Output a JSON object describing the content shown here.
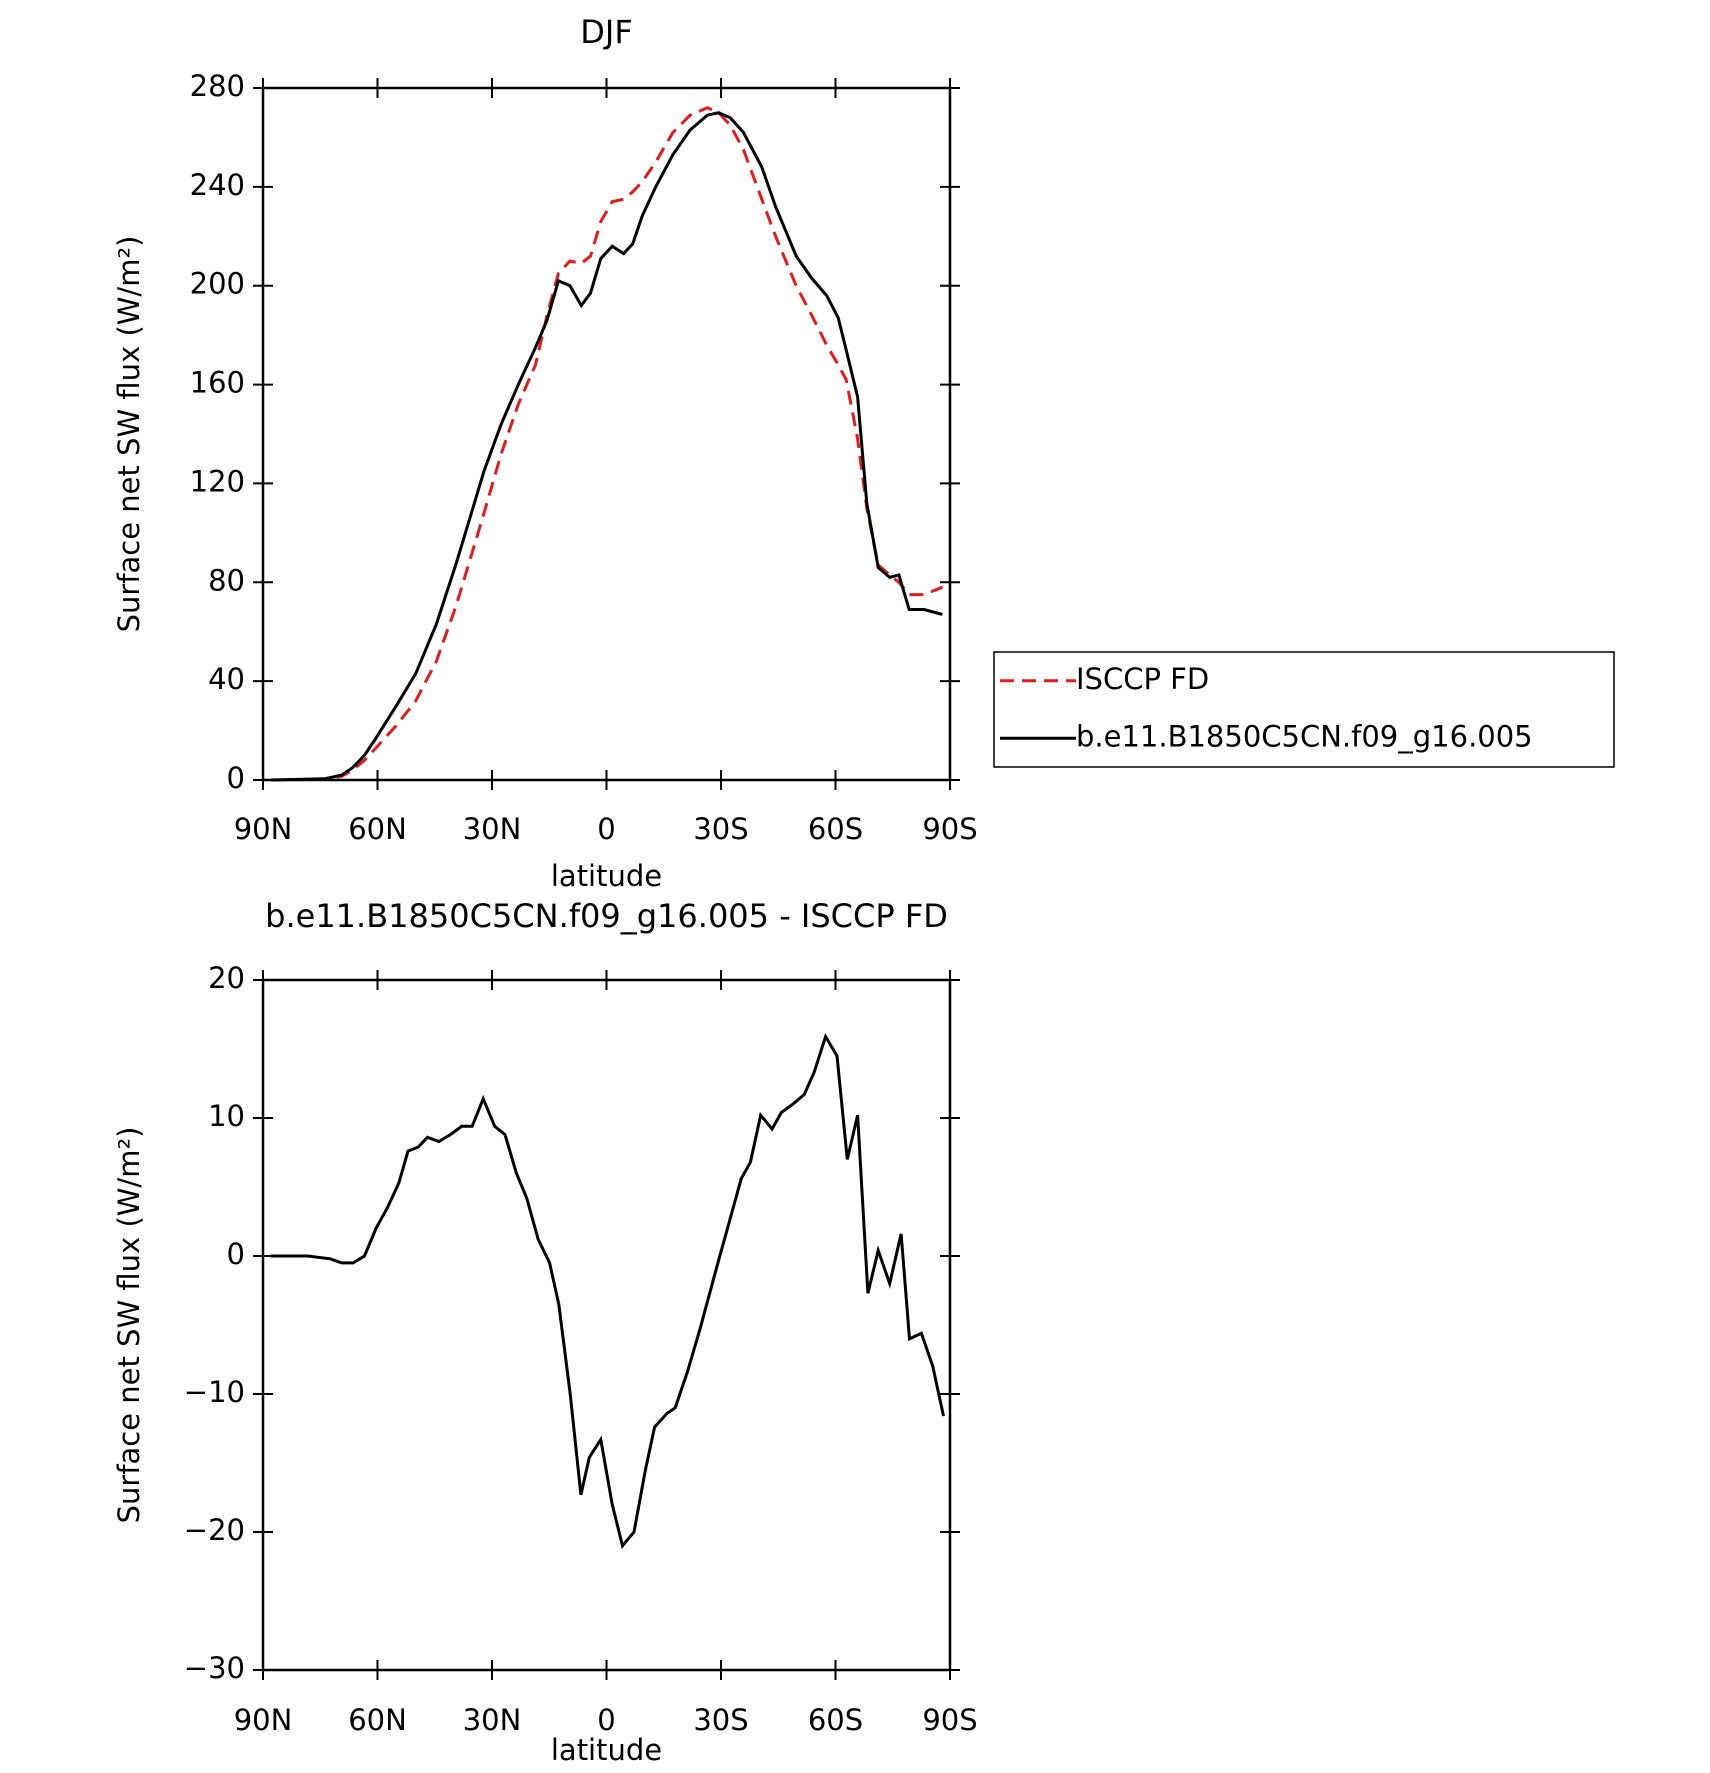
{
  "chart_data": [
    {
      "type": "line",
      "title": "DJF",
      "xlabel": "latitude",
      "ylabel": "Surface net SW flux (W/m²)",
      "xlim": [
        90,
        -90
      ],
      "ylim": [
        0,
        280
      ],
      "xticks": [
        {
          "value": 90,
          "label": "90N"
        },
        {
          "value": 60,
          "label": "60N"
        },
        {
          "value": 30,
          "label": "30N"
        },
        0,
        {
          "value": -30,
          "label": "30S"
        },
        {
          "value": -60,
          "label": "60S"
        },
        {
          "value": -90,
          "label": "90S"
        }
      ],
      "yticks": [
        0,
        40,
        80,
        120,
        160,
        200,
        240,
        280
      ],
      "legend": "right",
      "series": [
        {
          "name": "ISCCP FD",
          "color": "#e41a1c",
          "linestyle": "dashed",
          "x": [
            87.9,
            73.9,
            69.4,
            66.5,
            63.4,
            60.4,
            55.1,
            50.0,
            44.6,
            39.5,
            35.0,
            32.1,
            27.6,
            23.1,
            18.6,
            15.6,
            12.6,
            9.6,
            6.6,
            4.2,
            1.5,
            -1.5,
            -4.5,
            -6.9,
            -9.3,
            -12.9,
            -17.4,
            -21.9,
            -26.4,
            -29.4,
            -32.4,
            -35.9,
            -40.7,
            -44.3,
            -49.7,
            -53.8,
            -57.7,
            -60.7,
            -62.8,
            -65.8,
            -68.2,
            -71.2,
            -74.2,
            -76.6,
            -79.3,
            -83.2,
            -88.0
          ],
          "values": [
            0,
            0.3,
            1.5,
            4,
            8,
            13,
            22,
            32,
            48,
            70,
            93,
            108,
            132,
            152,
            168,
            188,
            205,
            210,
            209,
            212,
            226,
            234,
            235,
            238,
            242,
            250,
            262,
            269,
            272,
            270,
            265,
            255,
            235,
            220,
            200,
            188,
            176,
            168,
            162,
            138,
            110,
            87,
            83,
            80,
            75,
            75,
            78
          ]
        },
        {
          "name": "b.e11.B1850C5CN.f09_g16.005",
          "color": "#000000",
          "linestyle": "solid",
          "x": [
            87.9,
            73.9,
            69.4,
            66.5,
            63.4,
            60.4,
            55.1,
            50.0,
            44.6,
            39.5,
            35.0,
            32.1,
            27.6,
            23.1,
            18.6,
            15.6,
            12.6,
            9.6,
            6.6,
            4.2,
            1.5,
            -1.5,
            -4.5,
            -6.9,
            -9.3,
            -12.9,
            -17.4,
            -21.9,
            -26.4,
            -29.4,
            -32.4,
            -35.9,
            -40.7,
            -44.3,
            -49.7,
            -53.8,
            -57.7,
            -60.7,
            -62.8,
            -65.8,
            -68.2,
            -71.2,
            -74.2,
            -76.6,
            -79.3,
            -83.2,
            -88.0
          ],
          "values": [
            0,
            0.5,
            2,
            5,
            10,
            17,
            30,
            43,
            63,
            87,
            110,
            125,
            144,
            160,
            175,
            186,
            202,
            200,
            192,
            197,
            211,
            216,
            213,
            217,
            228,
            240,
            253,
            263,
            269,
            270,
            268,
            262,
            248,
            232,
            212,
            203,
            196,
            187,
            174,
            155,
            112,
            86,
            82,
            83,
            69,
            69,
            67
          ]
        }
      ]
    },
    {
      "type": "line",
      "title": "b.e11.B1850C5CN.f09_g16.005 - ISCCP FD",
      "xlabel": "latitude",
      "ylabel": "Surface net SW flux (W/m²)",
      "xlim": [
        90,
        -90
      ],
      "ylim": [
        -30,
        20
      ],
      "xticks": [
        {
          "value": 90,
          "label": "90N"
        },
        {
          "value": 60,
          "label": "60N"
        },
        {
          "value": 30,
          "label": "30N"
        },
        0,
        {
          "value": -30,
          "label": "30S"
        },
        {
          "value": -60,
          "label": "60S"
        },
        {
          "value": -90,
          "label": "90S"
        }
      ],
      "yticks": [
        {
          "value": -30,
          "label": "−30"
        },
        {
          "value": -20,
          "label": "−20"
        },
        {
          "value": -10,
          "label": "−10"
        },
        0,
        10,
        20
      ],
      "series": [
        {
          "color": "#000000",
          "linestyle": "solid",
          "x": [
            87.9,
            78.3,
            72.4,
            69.4,
            66.4,
            63.4,
            60.4,
            57.4,
            54.4,
            52.0,
            49.3,
            46.9,
            43.9,
            40.9,
            37.9,
            35.2,
            32.3,
            29.3,
            26.6,
            23.6,
            20.9,
            17.9,
            14.9,
            12.5,
            9.5,
            6.7,
            4.5,
            1.5,
            -1.5,
            -4.2,
            -7.2,
            -10.2,
            -12.6,
            -15.9,
            -18.0,
            -21.2,
            -24.5,
            -28.7,
            -31.7,
            -35.3,
            -37.7,
            -40.4,
            -43.4,
            -45.8,
            -48.8,
            -51.8,
            -54.4,
            -57.4,
            -60.4,
            -63.1,
            -65.8,
            -68.5,
            -71.2,
            -74.2,
            -77.2,
            -79.4,
            -82.5,
            -85.5,
            -88.3
          ],
          "values": [
            0,
            0,
            -0.2,
            -0.5,
            -0.5,
            0,
            2,
            3.5,
            5.3,
            7.6,
            7.9,
            8.6,
            8.3,
            8.8,
            9.4,
            9.4,
            11.4,
            9.4,
            8.8,
            6,
            4.2,
            1.2,
            -0.5,
            -3.5,
            -10,
            -17.3,
            -14.6,
            -13.3,
            -18,
            -21,
            -20,
            -15.5,
            -12.4,
            -11.4,
            -11,
            -8.4,
            -5.3,
            -1,
            2,
            5.6,
            6.8,
            10.2,
            9.2,
            10.4,
            11,
            11.7,
            13.3,
            15.9,
            14.5,
            7,
            10.2,
            -2.7,
            0.4,
            -2,
            1.6,
            -6,
            -5.6,
            -8,
            -11.6
          ]
        }
      ]
    }
  ]
}
